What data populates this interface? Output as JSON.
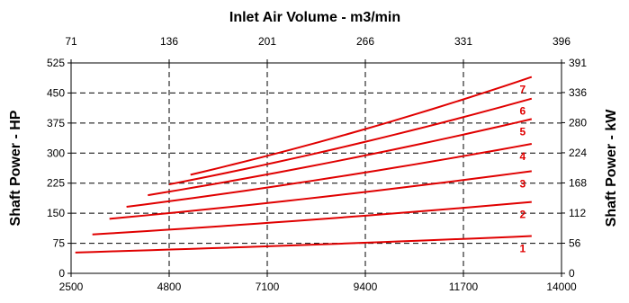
{
  "chart_data": {
    "type": "line",
    "title": "Inlet Air Volume - m3/min",
    "xlabel": "",
    "ylabel": "Shaft Power - HP",
    "ylabel_right": "Shaft Power - kW",
    "x_bottom": {
      "min": 2500,
      "max": 14000,
      "ticks": [
        2500,
        4800,
        7100,
        9400,
        11700,
        14000
      ]
    },
    "x_top": {
      "min": 71,
      "max": 396,
      "ticks": [
        71,
        136,
        201,
        266,
        331,
        396
      ]
    },
    "y_left": {
      "min": 0,
      "max": 525,
      "ticks": [
        0,
        75,
        150,
        225,
        300,
        375,
        450,
        525
      ]
    },
    "y_right": {
      "min": 0,
      "max": 391,
      "ticks": [
        0,
        56,
        112,
        168,
        224,
        280,
        336,
        391
      ]
    },
    "grid": "dashed",
    "color": "#e00000",
    "series": [
      {
        "name": "1",
        "x": [
          2600,
          13300
        ],
        "y": [
          52,
          93
        ]
      },
      {
        "name": "2",
        "x": [
          3000,
          13300
        ],
        "y": [
          97,
          178
        ]
      },
      {
        "name": "3",
        "x": [
          3400,
          13300
        ],
        "y": [
          136,
          255
        ]
      },
      {
        "name": "4",
        "x": [
          3800,
          13300
        ],
        "y": [
          166,
          323
        ]
      },
      {
        "name": "5",
        "x": [
          4300,
          13300
        ],
        "y": [
          195,
          385
        ]
      },
      {
        "name": "6",
        "x": [
          4800,
          13300
        ],
        "y": [
          222,
          436
        ]
      },
      {
        "name": "7",
        "x": [
          5300,
          13300
        ],
        "y": [
          246,
          490
        ]
      }
    ]
  }
}
